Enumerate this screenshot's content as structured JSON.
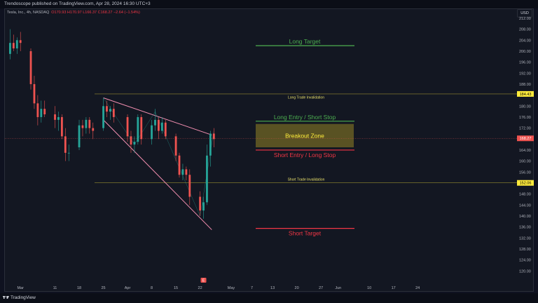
{
  "header": {
    "published": "Trendoscope published on TradingView.com, Apr 28, 2024 16:30 UTC+3"
  },
  "symbol": {
    "name": "Tesla, Inc., 4h, NASDAQ",
    "ohlc": "O170.93 H170.97 L166.37 C168.27 −2.64 (−1.54%)"
  },
  "currency_button": "USD",
  "footer": {
    "brand": "TradingView"
  },
  "colors": {
    "background": "#131722",
    "up": "#26a69a",
    "down": "#ef5350",
    "green_level": "#4caf50",
    "red_level": "#f23645",
    "pink_line": "#f48fb1",
    "zone_fill": "#6b6124",
    "price_tag": "#ef5350",
    "invalidation_tag": "#ffeb3b"
  },
  "chart_data": {
    "type": "candlestick",
    "ylim": [
      116,
      213
    ],
    "yticks": [
      120,
      124,
      128,
      132,
      136,
      140,
      144,
      148,
      152,
      156,
      160,
      164,
      168,
      172,
      176,
      180,
      184,
      188,
      192,
      196,
      200,
      204,
      208,
      212
    ],
    "xticks": [
      "Mar",
      "11",
      "18",
      "25",
      "Apr",
      "8",
      "15",
      "22",
      "May",
      "7",
      "13",
      "20",
      "27",
      "Jun",
      "10",
      "17",
      "24"
    ],
    "candles": [
      {
        "x": "Feb 27",
        "o": 199,
        "h": 208,
        "l": 197,
        "c": 203
      },
      {
        "x": "Feb 28",
        "o": 203,
        "h": 206,
        "l": 200,
        "c": 201
      },
      {
        "x": "Feb 29",
        "o": 201,
        "h": 205,
        "l": 199,
        "c": 204
      },
      {
        "x": "Mar 1",
        "o": 204,
        "h": 207,
        "l": 200,
        "c": 203
      },
      {
        "x": "Mar 4",
        "o": 200,
        "h": 201,
        "l": 186,
        "c": 188
      },
      {
        "x": "Mar 5",
        "o": 188,
        "h": 191,
        "l": 179,
        "c": 181
      },
      {
        "x": "Mar 6",
        "o": 181,
        "h": 184,
        "l": 173,
        "c": 176
      },
      {
        "x": "Mar 7",
        "o": 176,
        "h": 182,
        "l": 174,
        "c": 179
      },
      {
        "x": "Mar 8",
        "o": 179,
        "h": 182,
        "l": 176,
        "c": 177
      },
      {
        "x": "Mar 11",
        "o": 177,
        "h": 180,
        "l": 172,
        "c": 175
      },
      {
        "x": "Mar 12",
        "o": 175,
        "h": 178,
        "l": 171,
        "c": 176
      },
      {
        "x": "Mar 13",
        "o": 176,
        "h": 177,
        "l": 168,
        "c": 169
      },
      {
        "x": "Mar 14",
        "o": 169,
        "h": 172,
        "l": 160,
        "c": 163
      },
      {
        "x": "Mar 15",
        "o": 163,
        "h": 166,
        "l": 160,
        "c": 163
      },
      {
        "x": "Mar 18",
        "o": 165,
        "h": 175,
        "l": 164,
        "c": 173
      },
      {
        "x": "Mar 19",
        "o": 173,
        "h": 175,
        "l": 169,
        "c": 172
      },
      {
        "x": "Mar 20",
        "o": 172,
        "h": 176,
        "l": 170,
        "c": 175
      },
      {
        "x": "Mar 21",
        "o": 175,
        "h": 176,
        "l": 170,
        "c": 172
      },
      {
        "x": "Mar 22",
        "o": 172,
        "h": 174,
        "l": 168,
        "c": 171
      },
      {
        "x": "Mar 25",
        "o": 172,
        "h": 183,
        "l": 171,
        "c": 180
      },
      {
        "x": "Mar 26",
        "o": 180,
        "h": 182,
        "l": 176,
        "c": 178
      },
      {
        "x": "Mar 27",
        "o": 178,
        "h": 180,
        "l": 175,
        "c": 179
      },
      {
        "x": "Mar 28",
        "o": 179,
        "h": 181,
        "l": 174,
        "c": 176
      },
      {
        "x": "Apr 1",
        "o": 176,
        "h": 177,
        "l": 167,
        "c": 169
      },
      {
        "x": "Apr 2",
        "o": 169,
        "h": 171,
        "l": 163,
        "c": 166
      },
      {
        "x": "Apr 3",
        "o": 166,
        "h": 169,
        "l": 163,
        "c": 167
      },
      {
        "x": "Apr 4",
        "o": 167,
        "h": 177,
        "l": 166,
        "c": 176
      },
      {
        "x": "Apr 5",
        "o": 176,
        "h": 177,
        "l": 166,
        "c": 168
      },
      {
        "x": "Apr 8",
        "o": 168,
        "h": 175,
        "l": 166,
        "c": 173
      },
      {
        "x": "Apr 9",
        "o": 173,
        "h": 179,
        "l": 171,
        "c": 175
      },
      {
        "x": "Apr 10",
        "o": 175,
        "h": 176,
        "l": 168,
        "c": 171
      },
      {
        "x": "Apr 11",
        "o": 171,
        "h": 176,
        "l": 170,
        "c": 174
      },
      {
        "x": "Apr 12",
        "o": 174,
        "h": 175,
        "l": 168,
        "c": 169
      },
      {
        "x": "Apr 15",
        "o": 169,
        "h": 170,
        "l": 160,
        "c": 162
      },
      {
        "x": "Apr 16",
        "o": 162,
        "h": 163,
        "l": 154,
        "c": 155
      },
      {
        "x": "Apr 17",
        "o": 155,
        "h": 159,
        "l": 153,
        "c": 157
      },
      {
        "x": "Apr 18",
        "o": 157,
        "h": 158,
        "l": 153,
        "c": 155
      },
      {
        "x": "Apr 19",
        "o": 155,
        "h": 157,
        "l": 144,
        "c": 147
      },
      {
        "x": "Apr 22",
        "o": 147,
        "h": 149,
        "l": 140,
        "c": 142
      },
      {
        "x": "Apr 23",
        "o": 142,
        "h": 147,
        "l": 139,
        "c": 145
      },
      {
        "x": "Apr 24",
        "o": 145,
        "h": 166,
        "l": 144,
        "c": 162
      },
      {
        "x": "Apr 25",
        "o": 162,
        "h": 171,
        "l": 158,
        "c": 170
      },
      {
        "x": "Apr 26",
        "o": 170,
        "h": 172,
        "l": 165,
        "c": 168
      }
    ],
    "current_price": 168.27,
    "levels": [
      {
        "name": "Long Target",
        "value": 202,
        "color": "#4caf50",
        "label_pos": "above"
      },
      {
        "name": "Long Trade Invalidation",
        "value": 184.43,
        "color": "#ffeb3b",
        "label_pos": "below",
        "tag": "184.43"
      },
      {
        "name": "Long Entry / Short Stop",
        "value": 174.5,
        "color": "#4caf50",
        "label_pos": "above"
      },
      {
        "name": "Short Entry / Long Stop",
        "value": 164,
        "color": "#f23645",
        "label_pos": "below"
      },
      {
        "name": "Short Trade Invalidation",
        "value": 152.06,
        "color": "#ffeb3b",
        "label_pos": "above",
        "tag": "152.06"
      },
      {
        "name": "Short Target",
        "value": 135.5,
        "color": "#f23645",
        "label_pos": "below"
      }
    ],
    "zone": {
      "name": "Breakout Zone",
      "top": 173.5,
      "bottom": 165
    },
    "trendlines": [
      {
        "from": [
          "Mar 25",
          183
        ],
        "to": [
          "Apr 26",
          169.5
        ]
      },
      {
        "from": [
          "Mar 25",
          175
        ],
        "to": [
          "Apr 26",
          135
        ]
      }
    ],
    "earnings_marker": "E"
  }
}
